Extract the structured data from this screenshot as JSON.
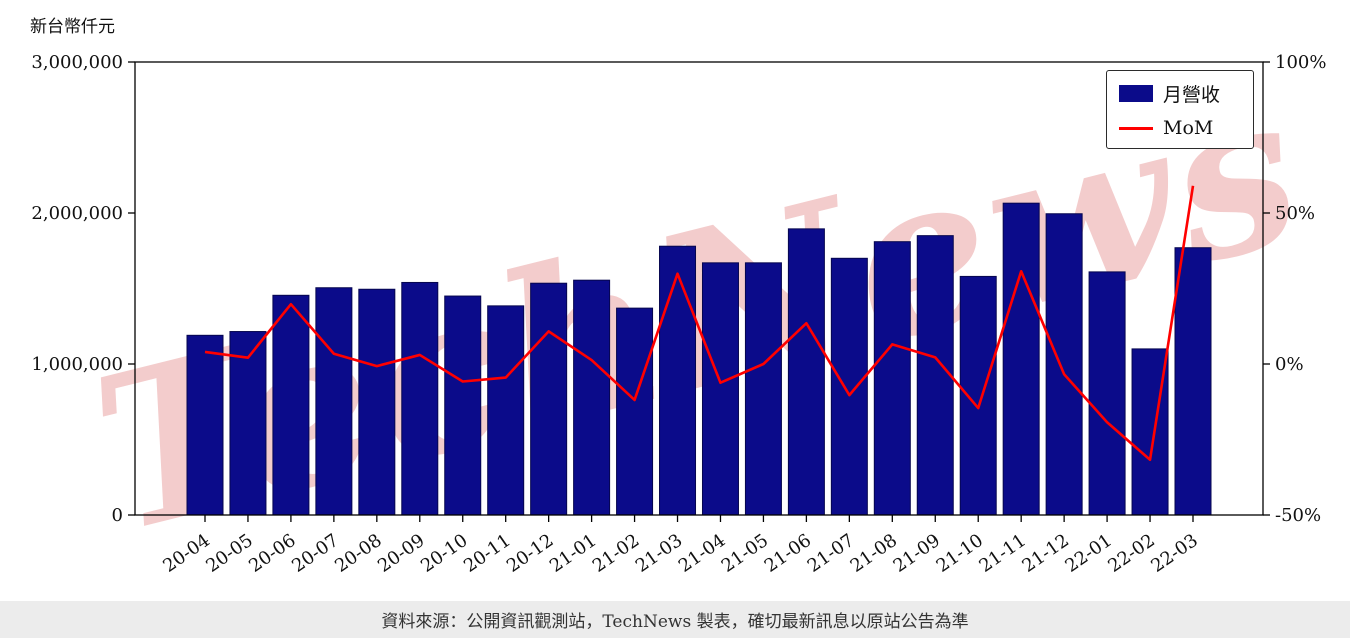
{
  "chart_data": {
    "type": "bar+line",
    "title": "",
    "unit_label": "新台幣仟元",
    "categories": [
      "20-04",
      "20-05",
      "20-06",
      "20-07",
      "20-08",
      "20-09",
      "20-10",
      "20-11",
      "20-12",
      "21-01",
      "21-02",
      "21-03",
      "21-04",
      "21-05",
      "21-06",
      "21-07",
      "21-08",
      "21-09",
      "21-10",
      "21-11",
      "21-12",
      "22-01",
      "22-02",
      "22-03"
    ],
    "series": [
      {
        "name": "月營收",
        "type": "bar",
        "axis": "left",
        "color": "#0b0b8a",
        "values": [
          1190000,
          1215000,
          1455000,
          1505000,
          1495000,
          1540000,
          1450000,
          1385000,
          1535000,
          1555000,
          1370000,
          1780000,
          1670000,
          1670000,
          1895000,
          1700000,
          1810000,
          1850000,
          1580000,
          2065000,
          1995000,
          1610000,
          1100000,
          1770000
        ]
      },
      {
        "name": "MoM",
        "type": "line",
        "axis": "right",
        "color": "#ff0000",
        "values": [
          4.0,
          2.1,
          19.8,
          3.4,
          -0.7,
          3.0,
          -5.8,
          -4.5,
          10.8,
          1.3,
          -11.9,
          29.9,
          -6.2,
          0.0,
          13.5,
          -10.3,
          6.5,
          2.2,
          -14.6,
          30.7,
          -3.4,
          -19.3,
          -31.7,
          59.0
        ]
      }
    ],
    "left_axis": {
      "min": 0,
      "max": 3000000,
      "ticks": [
        0,
        1000000,
        2000000,
        3000000
      ],
      "tick_labels": [
        "0",
        "1,000,000",
        "2,000,000",
        "3,000,000"
      ]
    },
    "right_axis": {
      "min": -50,
      "max": 100,
      "ticks": [
        -50,
        0,
        50,
        100
      ],
      "tick_labels": [
        "-50%",
        "0%",
        "50%",
        "100%"
      ]
    },
    "legend": {
      "position": "top-right",
      "items": [
        {
          "label": "月營收",
          "color": "#0b0b8a",
          "marker": "rect"
        },
        {
          "label": "MoM",
          "color": "#ff0000",
          "marker": "line"
        }
      ]
    },
    "grid": false
  },
  "watermark": {
    "text": "TechNews",
    "color": "#e07a7a"
  },
  "footer": {
    "text": "資料來源：公開資訊觀測站，TechNews 製表，確切最新訊息以原站公告為準"
  }
}
